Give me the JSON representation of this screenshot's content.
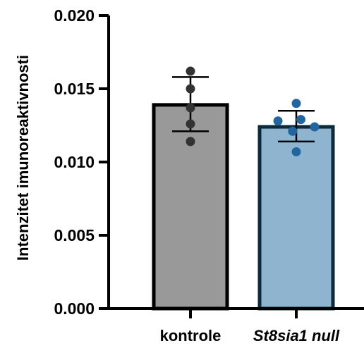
{
  "chart_data": {
    "type": "bar",
    "title": "",
    "xlabel": "",
    "ylabel": "Intenzitet imunoreaktivnosti",
    "ylim": [
      0,
      0.02
    ],
    "yticks": [
      "0.000",
      "0.005",
      "0.010",
      "0.015",
      "0.020"
    ],
    "yticks_values": [
      0,
      0.005,
      0.01,
      0.015,
      0.02
    ],
    "grid": false,
    "legend": "none",
    "categories": [
      "kontrole",
      "St8sia1 null"
    ],
    "category_styles": [
      "normal",
      "italic"
    ],
    "values": [
      0.0139,
      0.0124
    ],
    "error_low": [
      0.0121,
      0.0114
    ],
    "error_high": [
      0.0158,
      0.0135
    ],
    "bar_colors": [
      "#999999",
      "#8eb4cf"
    ],
    "bar_edge_colors": [
      "#000000",
      "#0d2a3a"
    ],
    "point_colors": [
      "#333333",
      "#2266a0"
    ],
    "points": [
      [
        {
          "x": 0,
          "y": 0.0162
        },
        {
          "x": 0,
          "y": 0.015
        },
        {
          "x": 0,
          "y": 0.0137
        },
        {
          "x": 0,
          "y": 0.0126
        },
        {
          "x": 0,
          "y": 0.0114
        }
      ],
      [
        {
          "x": 0,
          "y": 0.014
        },
        {
          "x": -1,
          "y": 0.0128
        },
        {
          "x": 0.25,
          "y": 0.0129
        },
        {
          "x": 1,
          "y": 0.0124
        },
        {
          "x": -0.2,
          "y": 0.0121
        },
        {
          "x": 0,
          "y": 0.0107
        }
      ]
    ]
  }
}
